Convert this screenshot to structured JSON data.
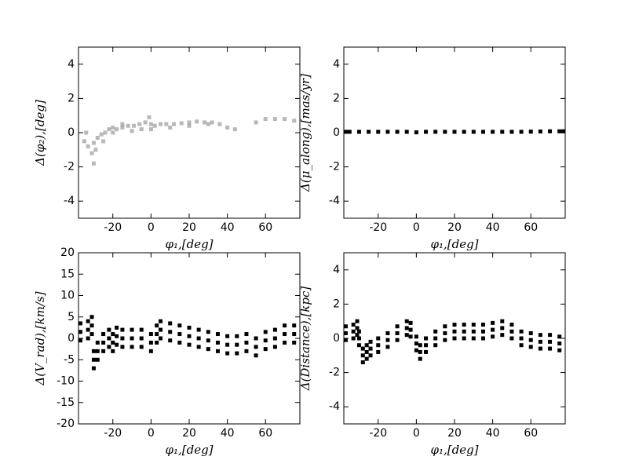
{
  "chart_data": [
    {
      "type": "scatter",
      "xlabel": "φ₁,[deg]",
      "ylabel": "Δ(φ₂),[deg]",
      "color": "#333333",
      "alpha": 0.35,
      "xlim": [
        -38,
        78
      ],
      "ylim": [
        -5,
        5
      ],
      "xticks": [
        -20,
        0,
        20,
        40,
        60
      ],
      "yticks": [
        -4,
        -2,
        0,
        2,
        4
      ],
      "x": [
        -35,
        -33,
        -31,
        -30,
        -29,
        -28,
        -26,
        -24,
        -22,
        -20,
        -18,
        -15,
        -12,
        -9,
        -6,
        -3,
        -1,
        0,
        2,
        5,
        8,
        12,
        16,
        20,
        24,
        28,
        32,
        36,
        40,
        44,
        55,
        60,
        65,
        70,
        75,
        -34,
        -30,
        -25,
        -20,
        -15,
        -10,
        -5,
        0,
        10,
        20,
        30
      ],
      "values": [
        -0.5,
        -0.8,
        -1.2,
        -1.8,
        -1.0,
        -0.3,
        -0.1,
        0.0,
        0.2,
        0.3,
        0.2,
        0.3,
        0.4,
        0.4,
        0.5,
        0.6,
        0.9,
        0.5,
        0.4,
        0.5,
        0.5,
        0.5,
        0.55,
        0.6,
        0.65,
        0.6,
        0.6,
        0.5,
        0.3,
        0.2,
        0.6,
        0.8,
        0.8,
        0.8,
        0.7,
        0.0,
        -0.6,
        -0.5,
        0.0,
        0.5,
        0.1,
        0.2,
        0.2,
        0.3,
        0.4,
        0.5
      ]
    },
    {
      "type": "scatter",
      "xlabel": "φ₁,[deg]",
      "ylabel": "Δ(μ_along),[mas/yr]",
      "color": "#000000",
      "alpha": 1,
      "xlim": [
        -38,
        78
      ],
      "ylim": [
        -5,
        5
      ],
      "xticks": [
        -20,
        0,
        20,
        40,
        60
      ],
      "yticks": [
        -4,
        -2,
        0,
        2,
        4
      ],
      "x": [
        -37,
        -35,
        -30,
        -25,
        -20,
        -15,
        -10,
        -5,
        0,
        5,
        10,
        15,
        20,
        25,
        30,
        35,
        40,
        45,
        50,
        55,
        60,
        65,
        70,
        75,
        77
      ],
      "values": [
        0.05,
        0.05,
        0.05,
        0.05,
        0.05,
        0.05,
        0.05,
        0.05,
        0.02,
        0.05,
        0.05,
        0.05,
        0.05,
        0.05,
        0.05,
        0.05,
        0.05,
        0.05,
        0.05,
        0.05,
        0.06,
        0.07,
        0.08,
        0.08,
        0.08
      ]
    },
    {
      "type": "scatter",
      "xlabel": "φ₁,[deg]",
      "ylabel": "Δ(V_rad),[km/s]",
      "color": "#000000",
      "alpha": 1,
      "xlim": [
        -38,
        78
      ],
      "ylim": [
        -20,
        20
      ],
      "xticks": [
        -20,
        0,
        20,
        40,
        60
      ],
      "yticks": [
        -20,
        -15,
        -10,
        -5,
        0,
        5,
        10,
        15,
        20
      ],
      "x": [
        -37,
        -37,
        -37,
        -33,
        -33,
        -33,
        -31,
        -31,
        -31,
        -30,
        -30,
        -30,
        -28,
        -28,
        -28,
        -25,
        -25,
        -25,
        -22,
        -22,
        -22,
        -20,
        -20,
        -20,
        -18,
        -18,
        -18,
        -15,
        -15,
        -15,
        -10,
        -10,
        -10,
        -5,
        -5,
        -5,
        0,
        0,
        0,
        3,
        3,
        3,
        5,
        5,
        5,
        10,
        10,
        10,
        15,
        15,
        15,
        20,
        20,
        20,
        25,
        25,
        25,
        30,
        30,
        30,
        35,
        35,
        35,
        40,
        40,
        40,
        45,
        45,
        45,
        50,
        50,
        50,
        55,
        55,
        55,
        60,
        60,
        60,
        65,
        65,
        65,
        70,
        70,
        70,
        75,
        75,
        75
      ],
      "values": [
        3.5,
        1.5,
        -0.5,
        4,
        2,
        0,
        5,
        3,
        1,
        -3,
        -5,
        -7,
        -1,
        -3,
        -5,
        1,
        -1,
        -3,
        2,
        0,
        -2,
        1,
        -1,
        -3,
        2.5,
        0.5,
        -1.5,
        2,
        0,
        -2,
        2,
        0,
        -2,
        2,
        0,
        -2,
        1,
        -1,
        -3,
        3,
        1,
        -1,
        4,
        2,
        0,
        3.5,
        1.5,
        -0.5,
        3,
        1,
        -1,
        2.5,
        0.5,
        -1.5,
        2,
        0,
        -2,
        1.5,
        -0.5,
        -2.5,
        1,
        -1,
        -3,
        0.5,
        -1.5,
        -3.5,
        0.5,
        -1.5,
        -3.5,
        1,
        -1,
        -3,
        0,
        -2,
        -4,
        1.5,
        -0.5,
        -2.5,
        2,
        0,
        -2,
        3,
        1,
        -1,
        3,
        1,
        -1
      ]
    },
    {
      "type": "scatter",
      "xlabel": "φ₁,[deg]",
      "ylabel": "Δ(Distance),[kpc]",
      "color": "#000000",
      "alpha": 1,
      "xlim": [
        -38,
        78
      ],
      "ylim": [
        -5,
        5
      ],
      "xticks": [
        -20,
        0,
        20,
        40,
        60
      ],
      "yticks": [
        -4,
        -2,
        0,
        2,
        4
      ],
      "x": [
        -37,
        -37,
        -37,
        -33,
        -33,
        -33,
        -31,
        -31,
        -31,
        -30,
        -30,
        -30,
        -28,
        -28,
        -28,
        -26,
        -26,
        -26,
        -24,
        -24,
        -24,
        -20,
        -20,
        -20,
        -15,
        -15,
        -15,
        -10,
        -10,
        -10,
        -5,
        -5,
        -5,
        -3,
        -3,
        -3,
        0,
        0,
        0,
        2,
        2,
        2,
        5,
        5,
        5,
        10,
        10,
        10,
        15,
        15,
        15,
        20,
        20,
        20,
        25,
        25,
        25,
        30,
        30,
        30,
        35,
        35,
        35,
        40,
        40,
        40,
        45,
        45,
        45,
        50,
        50,
        50,
        55,
        55,
        55,
        60,
        60,
        60,
        65,
        65,
        65,
        70,
        70,
        70,
        75,
        75,
        75
      ],
      "values": [
        0.7,
        0.3,
        -0.1,
        0.8,
        0.4,
        0,
        1,
        0.6,
        0.2,
        0.4,
        0,
        -0.4,
        -0.6,
        -1,
        -1.4,
        -0.4,
        -0.8,
        -1.2,
        -0.2,
        -0.6,
        -1,
        0,
        -0.4,
        -0.8,
        0.3,
        -0.1,
        -0.5,
        0.7,
        0.3,
        -0.1,
        1,
        0.6,
        0.2,
        0.9,
        0.5,
        0.1,
        0.1,
        -0.3,
        -0.7,
        -0.4,
        -0.8,
        -1.2,
        0,
        -0.4,
        -0.8,
        0.4,
        0,
        -0.4,
        0.7,
        0.3,
        -0.1,
        0.8,
        0.4,
        0,
        0.8,
        0.4,
        0,
        0.8,
        0.4,
        0,
        0.8,
        0.4,
        0,
        0.9,
        0.5,
        0.1,
        1,
        0.6,
        0.2,
        0.8,
        0.4,
        0,
        0.4,
        0,
        -0.4,
        0.3,
        -0.1,
        -0.5,
        0.2,
        -0.2,
        -0.6,
        0.2,
        -0.2,
        -0.6,
        0.1,
        -0.3,
        -0.7
      ]
    }
  ]
}
